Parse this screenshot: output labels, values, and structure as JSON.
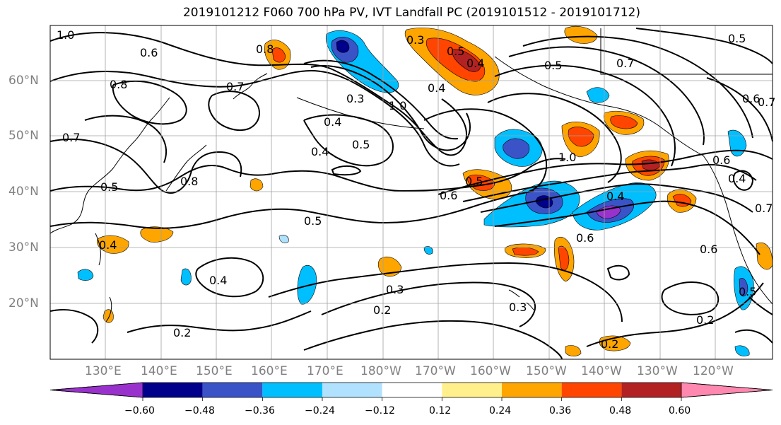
{
  "title": "2019101212 F060 700 hPa PV, IVT Landfall PC (2019101512 - 2019101712)",
  "lat_labels": [
    "60°N",
    "50°N",
    "40°N",
    "30°N",
    "20°N"
  ],
  "lon_labels": [
    "130°E",
    "140°E",
    "150°E",
    "160°E",
    "170°E",
    "180°W",
    "170°W",
    "160°W",
    "150°W",
    "140°W",
    "130°W",
    "120°W"
  ],
  "colorbar": {
    "ticks": [
      "−0.60",
      "−0.48",
      "−0.36",
      "−0.24",
      "−0.12",
      "0.12",
      "0.24",
      "0.36",
      "0.48",
      "0.60"
    ],
    "colors": [
      "#9932cc",
      "#00008b",
      "#3a54c8",
      "#00bfff",
      "#b0e2ff",
      "#ffffff",
      "#fff08c",
      "#ffa500",
      "#ff4500",
      "#b22222",
      "#ff88b0"
    ]
  },
  "contour_labels": [
    "1.0",
    "0.6",
    "0.8",
    "0.7",
    "0.5",
    "0.8",
    "0.4",
    "0.4",
    "0.5",
    "0.3",
    "1.0",
    "0.3",
    "0.4",
    "0.7",
    "0.5",
    "0.8",
    "0.7",
    "0.6",
    "0.7",
    "0.6",
    "0.4",
    "0.5",
    "0.7",
    "0.5",
    "0.4",
    "0.5",
    "0.6",
    "0.5",
    "1.0",
    "0.4",
    "0.6",
    "0.6",
    "0.4",
    "0.4",
    "0.3",
    "0.2",
    "0.3",
    "0.5",
    "0.2",
    "0.2",
    "0.2"
  ]
}
